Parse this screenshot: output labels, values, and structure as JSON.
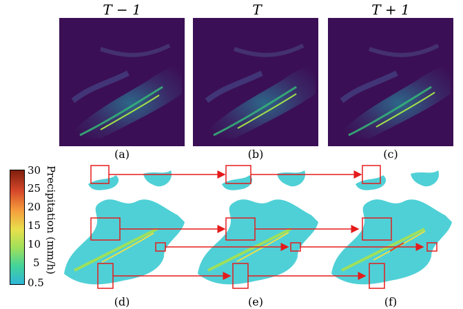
{
  "top_titles": [
    "T − 1",
    "T",
    "T + 1"
  ],
  "captions": [
    "(a)",
    "(b)",
    "(c)",
    "(d)",
    "(e)",
    "(f)"
  ],
  "colorbar": {
    "label": "Precipitation (mm/h)",
    "ticks": [
      "30",
      "25",
      "20",
      "15",
      "10",
      "5",
      "0.5"
    ],
    "colors": [
      "#7f1f0e",
      "#d6472a",
      "#f59c3c",
      "#e8e04c",
      "#9fe05a",
      "#43d39a",
      "#2fb6d8"
    ]
  },
  "colors": {
    "background_dark": "#3b0f55",
    "precip_light": "#4fd0d6",
    "box": "#e51b1b"
  }
}
